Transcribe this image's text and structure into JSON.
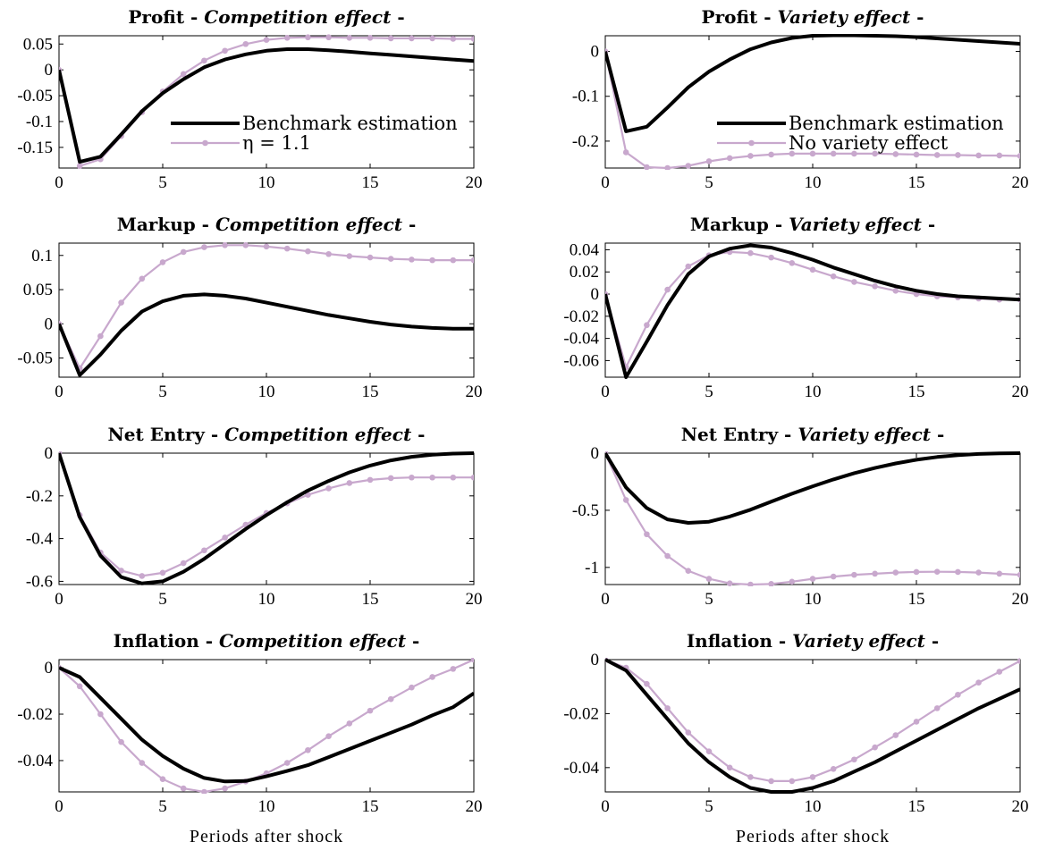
{
  "colors": {
    "benchmark": "#000000",
    "alternative": "#c8a8cd"
  },
  "chart_data": [
    {
      "type": "line",
      "title_prefix": "Profit - ",
      "title_effect": "Competition effect",
      "title_suffix": " -",
      "xlabel": "",
      "ylabel": "",
      "xlim": [
        0,
        20
      ],
      "ylim": [
        -0.19,
        0.066
      ],
      "xticks": [
        0,
        5,
        10,
        15,
        20
      ],
      "yticks": [
        0.05,
        0,
        -0.05,
        -0.1,
        -0.15
      ],
      "ytick_labels": [
        "0.05",
        "0",
        "-0.05",
        "-0.1",
        "-0.15"
      ],
      "legend": {
        "position": "lower-right",
        "entries": [
          "Benchmark estimation",
          "η = 1.1"
        ]
      },
      "series": [
        {
          "name": "Benchmark estimation",
          "style": "thick",
          "x": [
            0,
            1,
            2,
            3,
            4,
            5,
            6,
            7,
            8,
            9,
            10,
            11,
            12,
            13,
            14,
            15,
            16,
            17,
            18,
            19,
            20
          ],
          "values": [
            0,
            -0.178,
            -0.168,
            -0.125,
            -0.08,
            -0.045,
            -0.018,
            0.005,
            0.02,
            0.03,
            0.037,
            0.04,
            0.04,
            0.038,
            0.035,
            0.032,
            0.029,
            0.026,
            0.023,
            0.02,
            0.017
          ]
        },
        {
          "name": "η = 1.1",
          "style": "markers",
          "x": [
            0,
            1,
            2,
            3,
            4,
            5,
            6,
            7,
            8,
            9,
            10,
            11,
            12,
            13,
            14,
            15,
            16,
            17,
            18,
            19,
            20
          ],
          "values": [
            0,
            -0.186,
            -0.173,
            -0.128,
            -0.082,
            -0.042,
            -0.008,
            0.018,
            0.037,
            0.05,
            0.058,
            0.062,
            0.063,
            0.063,
            0.062,
            0.062,
            0.061,
            0.061,
            0.061,
            0.06,
            0.06
          ]
        }
      ]
    },
    {
      "type": "line",
      "title_prefix": "Profit - ",
      "title_effect": "Variety effect",
      "title_suffix": " -",
      "xlabel": "",
      "ylabel": "",
      "xlim": [
        0,
        20
      ],
      "ylim": [
        -0.26,
        0.035
      ],
      "xticks": [
        0,
        5,
        10,
        15,
        20
      ],
      "yticks": [
        0,
        -0.1,
        -0.2
      ],
      "ytick_labels": [
        "0",
        "-0.1",
        "-0.2"
      ],
      "legend": {
        "position": "lower-right",
        "entries": [
          "Benchmark estimation",
          "No variety effect"
        ]
      },
      "series": [
        {
          "name": "Benchmark estimation",
          "style": "thick",
          "x": [
            0,
            1,
            2,
            3,
            4,
            5,
            6,
            7,
            8,
            9,
            10,
            11,
            12,
            13,
            14,
            15,
            16,
            17,
            18,
            19,
            20
          ],
          "values": [
            0,
            -0.178,
            -0.168,
            -0.125,
            -0.08,
            -0.045,
            -0.018,
            0.005,
            0.02,
            0.03,
            0.035,
            0.036,
            0.036,
            0.035,
            0.034,
            0.032,
            0.029,
            0.026,
            0.023,
            0.02,
            0.017
          ]
        },
        {
          "name": "No variety effect",
          "style": "markers",
          "x": [
            0,
            1,
            2,
            3,
            4,
            5,
            6,
            7,
            8,
            9,
            10,
            11,
            12,
            13,
            14,
            15,
            16,
            17,
            18,
            19,
            20
          ],
          "values": [
            0,
            -0.225,
            -0.258,
            -0.26,
            -0.255,
            -0.245,
            -0.238,
            -0.233,
            -0.23,
            -0.228,
            -0.228,
            -0.228,
            -0.228,
            -0.228,
            -0.229,
            -0.23,
            -0.231,
            -0.231,
            -0.232,
            -0.232,
            -0.233
          ]
        }
      ]
    },
    {
      "type": "line",
      "title_prefix": "Markup - ",
      "title_effect": "Competition effect",
      "title_suffix": " -",
      "xlabel": "",
      "ylabel": "",
      "xlim": [
        0,
        20
      ],
      "ylim": [
        -0.078,
        0.118
      ],
      "xticks": [
        0,
        5,
        10,
        15,
        20
      ],
      "yticks": [
        0.1,
        0.05,
        0,
        -0.05
      ],
      "ytick_labels": [
        "0.1",
        "0.05",
        "0",
        "-0.05"
      ],
      "series": [
        {
          "name": "Benchmark estimation",
          "style": "thick",
          "x": [
            0,
            1,
            2,
            3,
            4,
            5,
            6,
            7,
            8,
            9,
            10,
            11,
            12,
            13,
            14,
            15,
            16,
            17,
            18,
            19,
            20
          ],
          "values": [
            0,
            -0.075,
            -0.045,
            -0.01,
            0.018,
            0.033,
            0.041,
            0.043,
            0.041,
            0.037,
            0.031,
            0.025,
            0.019,
            0.013,
            0.008,
            0.003,
            -0.001,
            -0.004,
            -0.006,
            -0.007,
            -0.007
          ]
        },
        {
          "name": "η = 1.1",
          "style": "markers",
          "x": [
            0,
            1,
            2,
            3,
            4,
            5,
            6,
            7,
            8,
            9,
            10,
            11,
            12,
            13,
            14,
            15,
            16,
            17,
            18,
            19,
            20
          ],
          "values": [
            0,
            -0.065,
            -0.018,
            0.031,
            0.066,
            0.09,
            0.105,
            0.112,
            0.115,
            0.115,
            0.113,
            0.11,
            0.106,
            0.102,
            0.099,
            0.097,
            0.095,
            0.094,
            0.093,
            0.093,
            0.093
          ]
        }
      ]
    },
    {
      "type": "line",
      "title_prefix": "Markup - ",
      "title_effect": "Variety effect",
      "title_suffix": " -",
      "xlabel": "",
      "ylabel": "",
      "xlim": [
        0,
        20
      ],
      "ylim": [
        -0.075,
        0.046
      ],
      "xticks": [
        0,
        5,
        10,
        15,
        20
      ],
      "yticks": [
        0.04,
        0.02,
        0,
        -0.02,
        -0.04,
        -0.06
      ],
      "ytick_labels": [
        "0.04",
        "0.02",
        "0",
        "-0.02",
        "-0.04",
        "-0.06"
      ],
      "series": [
        {
          "name": "Benchmark estimation",
          "style": "thick",
          "x": [
            0,
            1,
            2,
            3,
            4,
            5,
            6,
            7,
            8,
            9,
            10,
            11,
            12,
            13,
            14,
            15,
            16,
            17,
            18,
            19,
            20
          ],
          "values": [
            0,
            -0.075,
            -0.043,
            -0.01,
            0.018,
            0.034,
            0.041,
            0.044,
            0.042,
            0.037,
            0.031,
            0.024,
            0.018,
            0.012,
            0.007,
            0.003,
            0.0,
            -0.002,
            -0.003,
            -0.004,
            -0.005
          ]
        },
        {
          "name": "No variety effect",
          "style": "markers",
          "x": [
            0,
            1,
            2,
            3,
            4,
            5,
            6,
            7,
            8,
            9,
            10,
            11,
            12,
            13,
            14,
            15,
            16,
            17,
            18,
            19,
            20
          ],
          "values": [
            0,
            -0.066,
            -0.028,
            0.004,
            0.025,
            0.035,
            0.038,
            0.037,
            0.033,
            0.028,
            0.022,
            0.016,
            0.011,
            0.007,
            0.003,
            0.0,
            -0.002,
            -0.003,
            -0.004,
            -0.005,
            -0.005
          ]
        }
      ]
    },
    {
      "type": "line",
      "title_prefix": "Net Entry - ",
      "title_effect": "Competition effect",
      "title_suffix": " -",
      "xlabel": "",
      "ylabel": "",
      "xlim": [
        0,
        20
      ],
      "ylim": [
        -0.615,
        0.0
      ],
      "xticks": [
        0,
        5,
        10,
        15,
        20
      ],
      "yticks": [
        0,
        -0.2,
        -0.4,
        -0.6
      ],
      "ytick_labels": [
        "0",
        "-0.2",
        "-0.4",
        "-0.6"
      ],
      "series": [
        {
          "name": "Benchmark estimation",
          "style": "thick",
          "x": [
            0,
            1,
            2,
            3,
            4,
            5,
            6,
            7,
            8,
            9,
            10,
            11,
            12,
            13,
            14,
            15,
            16,
            17,
            18,
            19,
            20
          ],
          "values": [
            0,
            -0.3,
            -0.48,
            -0.58,
            -0.61,
            -0.6,
            -0.555,
            -0.495,
            -0.425,
            -0.355,
            -0.29,
            -0.23,
            -0.175,
            -0.13,
            -0.09,
            -0.058,
            -0.034,
            -0.017,
            -0.007,
            -0.002,
            0.0
          ]
        },
        {
          "name": "η = 1.1",
          "style": "markers",
          "x": [
            0,
            1,
            2,
            3,
            4,
            5,
            6,
            7,
            8,
            9,
            10,
            11,
            12,
            13,
            14,
            15,
            16,
            17,
            18,
            19,
            20
          ],
          "values": [
            0,
            -0.29,
            -0.465,
            -0.55,
            -0.575,
            -0.56,
            -0.515,
            -0.455,
            -0.395,
            -0.335,
            -0.28,
            -0.235,
            -0.195,
            -0.165,
            -0.14,
            -0.125,
            -0.117,
            -0.114,
            -0.114,
            -0.114,
            -0.114
          ]
        }
      ]
    },
    {
      "type": "line",
      "title_prefix": "Net Entry - ",
      "title_effect": "Variety effect",
      "title_suffix": " -",
      "xlabel": "",
      "ylabel": "",
      "xlim": [
        0,
        20
      ],
      "ylim": [
        -1.15,
        0.0
      ],
      "xticks": [
        0,
        5,
        10,
        15,
        20
      ],
      "yticks": [
        0,
        -0.5,
        -1
      ],
      "ytick_labels": [
        "0",
        "-0.5",
        "-1"
      ],
      "series": [
        {
          "name": "Benchmark estimation",
          "style": "thick",
          "x": [
            0,
            1,
            2,
            3,
            4,
            5,
            6,
            7,
            8,
            9,
            10,
            11,
            12,
            13,
            14,
            15,
            16,
            17,
            18,
            19,
            20
          ],
          "values": [
            0,
            -0.3,
            -0.48,
            -0.58,
            -0.61,
            -0.6,
            -0.555,
            -0.495,
            -0.425,
            -0.355,
            -0.29,
            -0.23,
            -0.175,
            -0.13,
            -0.09,
            -0.058,
            -0.034,
            -0.017,
            -0.007,
            -0.002,
            0.0
          ]
        },
        {
          "name": "No variety effect",
          "style": "markers",
          "x": [
            0,
            1,
            2,
            3,
            4,
            5,
            6,
            7,
            8,
            9,
            10,
            11,
            12,
            13,
            14,
            15,
            16,
            17,
            18,
            19,
            20
          ],
          "values": [
            0,
            -0.41,
            -0.71,
            -0.9,
            -1.03,
            -1.1,
            -1.14,
            -1.15,
            -1.145,
            -1.125,
            -1.1,
            -1.08,
            -1.065,
            -1.055,
            -1.045,
            -1.04,
            -1.038,
            -1.04,
            -1.045,
            -1.055,
            -1.065
          ]
        }
      ]
    },
    {
      "type": "line",
      "title_prefix": "Inflation - ",
      "title_effect": "Competition effect",
      "title_suffix": " -",
      "xlabel": "Periods after shock",
      "ylabel": "",
      "xlim": [
        0,
        20
      ],
      "ylim": [
        -0.0535,
        0.0035
      ],
      "xticks": [
        0,
        5,
        10,
        15,
        20
      ],
      "yticks": [
        0,
        -0.02,
        -0.04
      ],
      "ytick_labels": [
        "0",
        "-0.02",
        "-0.04"
      ],
      "series": [
        {
          "name": "Benchmark estimation",
          "style": "thick",
          "x": [
            0,
            1,
            2,
            3,
            4,
            5,
            6,
            7,
            8,
            9,
            10,
            11,
            12,
            13,
            14,
            15,
            16,
            17,
            18,
            19,
            20
          ],
          "values": [
            0,
            -0.004,
            -0.013,
            -0.022,
            -0.031,
            -0.038,
            -0.0435,
            -0.0475,
            -0.049,
            -0.0488,
            -0.0468,
            -0.0445,
            -0.042,
            -0.0385,
            -0.035,
            -0.0315,
            -0.028,
            -0.0245,
            -0.0205,
            -0.017,
            -0.011
          ]
        },
        {
          "name": "η = 1.1",
          "style": "markers",
          "x": [
            0,
            1,
            2,
            3,
            4,
            5,
            6,
            7,
            8,
            9,
            10,
            11,
            12,
            13,
            14,
            15,
            16,
            17,
            18,
            19,
            20
          ],
          "values": [
            0,
            -0.008,
            -0.02,
            -0.032,
            -0.041,
            -0.048,
            -0.052,
            -0.0535,
            -0.052,
            -0.049,
            -0.0455,
            -0.041,
            -0.0355,
            -0.0295,
            -0.024,
            -0.0185,
            -0.0135,
            -0.0085,
            -0.004,
            -0.0005,
            0.0035
          ]
        }
      ]
    },
    {
      "type": "line",
      "title_prefix": "Inflation - ",
      "title_effect": "Variety effect",
      "title_suffix": " -",
      "xlabel": "Periods after shock",
      "ylabel": "",
      "xlim": [
        0,
        20
      ],
      "ylim": [
        -0.049,
        0.0
      ],
      "xticks": [
        0,
        5,
        10,
        15,
        20
      ],
      "yticks": [
        0,
        -0.02,
        -0.04
      ],
      "ytick_labels": [
        "0",
        "-0.02",
        "-0.04"
      ],
      "series": [
        {
          "name": "Benchmark estimation",
          "style": "thick",
          "x": [
            0,
            1,
            2,
            3,
            4,
            5,
            6,
            7,
            8,
            9,
            10,
            11,
            12,
            13,
            14,
            15,
            16,
            17,
            18,
            19,
            20
          ],
          "values": [
            0,
            -0.004,
            -0.013,
            -0.022,
            -0.031,
            -0.038,
            -0.0435,
            -0.0475,
            -0.049,
            -0.049,
            -0.0475,
            -0.045,
            -0.0415,
            -0.038,
            -0.034,
            -0.03,
            -0.026,
            -0.022,
            -0.018,
            -0.0145,
            -0.011
          ]
        },
        {
          "name": "No variety effect",
          "style": "markers",
          "x": [
            0,
            1,
            2,
            3,
            4,
            5,
            6,
            7,
            8,
            9,
            10,
            11,
            12,
            13,
            14,
            15,
            16,
            17,
            18,
            19,
            20
          ],
          "values": [
            0,
            -0.003,
            -0.009,
            -0.018,
            -0.027,
            -0.034,
            -0.04,
            -0.0435,
            -0.045,
            -0.045,
            -0.0435,
            -0.0405,
            -0.037,
            -0.0325,
            -0.028,
            -0.023,
            -0.018,
            -0.013,
            -0.0085,
            -0.0045,
            -0.0005
          ]
        }
      ]
    }
  ]
}
